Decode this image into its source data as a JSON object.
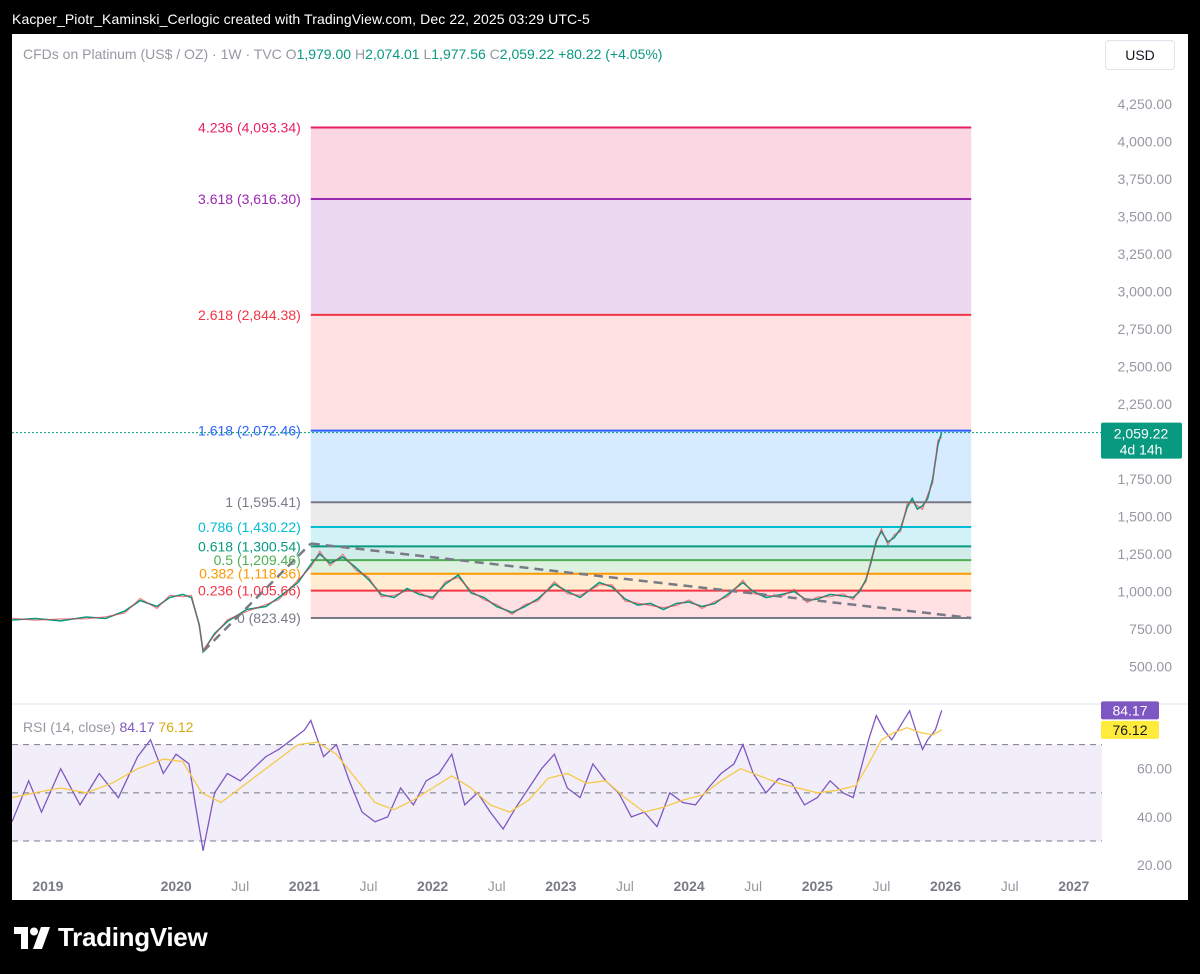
{
  "header": {
    "attribution": "Kacper_Piotr_Kaminski_Cerlogic created with TradingView.com, Dec 22, 2025 03:29 UTC-5"
  },
  "legend": {
    "symbol": "CFDs on Platinum (US$ / OZ) · 1W · TVC",
    "open_label": "O",
    "open": "1,979.00",
    "high_label": "H",
    "high": "2,074.01",
    "low_label": "L",
    "low": "1,977.56",
    "close_label": "C",
    "close": "2,059.22",
    "change": "+80.22 (+4.05%)"
  },
  "currency_button": "USD",
  "rsi_legend": {
    "label": "RSI (14, close)",
    "rsi_value": "84.17",
    "ma_value": "76.12"
  },
  "footer": {
    "brand": "TradingView"
  },
  "chart_data": {
    "type": "line",
    "title": "CFDs on Platinum (US$ / OZ) · 1W · TVC",
    "price_axis": {
      "ticks": [
        "4,250.00",
        "4,000.00",
        "3,750.00",
        "3,500.00",
        "3,250.00",
        "3,000.00",
        "2,750.00",
        "2,500.00",
        "2,250.00",
        "1,750.00",
        "1,500.00",
        "1,250.00",
        "1,000.00",
        "750.00",
        "500.00"
      ],
      "ylim": [
        250,
        4450
      ]
    },
    "time_axis": {
      "ticks": [
        {
          "label": "2019",
          "t": 2019.0,
          "bold": true
        },
        {
          "label": "2020",
          "t": 2020.0,
          "bold": true
        },
        {
          "label": "Jul",
          "t": 2020.5,
          "bold": false
        },
        {
          "label": "2021",
          "t": 2021.0,
          "bold": true
        },
        {
          "label": "Jul",
          "t": 2021.5,
          "bold": false
        },
        {
          "label": "2022",
          "t": 2022.0,
          "bold": true
        },
        {
          "label": "Jul",
          "t": 2022.5,
          "bold": false
        },
        {
          "label": "2023",
          "t": 2023.0,
          "bold": true
        },
        {
          "label": "Jul",
          "t": 2023.5,
          "bold": false
        },
        {
          "label": "2024",
          "t": 2024.0,
          "bold": true
        },
        {
          "label": "Jul",
          "t": 2024.5,
          "bold": false
        },
        {
          "label": "2025",
          "t": 2025.0,
          "bold": true
        },
        {
          "label": "Jul",
          "t": 2025.5,
          "bold": false
        },
        {
          "label": "2026",
          "t": 2026.0,
          "bold": true
        },
        {
          "label": "Jul",
          "t": 2026.5,
          "bold": false
        },
        {
          "label": "2027",
          "t": 2027.0,
          "bold": true
        }
      ],
      "xlim": [
        2018.72,
        2027.22
      ]
    },
    "price_series": {
      "name": "CFDs on Platinum",
      "points": [
        [
          2018.72,
          810
        ],
        [
          2018.9,
          820
        ],
        [
          2019.1,
          805
        ],
        [
          2019.3,
          830
        ],
        [
          2019.45,
          820
        ],
        [
          2019.6,
          870
        ],
        [
          2019.72,
          940
        ],
        [
          2019.85,
          900
        ],
        [
          2019.95,
          960
        ],
        [
          2020.05,
          980
        ],
        [
          2020.12,
          960
        ],
        [
          2020.18,
          780
        ],
        [
          2020.21,
          600
        ],
        [
          2020.3,
          720
        ],
        [
          2020.4,
          800
        ],
        [
          2020.55,
          880
        ],
        [
          2020.7,
          900
        ],
        [
          2020.8,
          960
        ],
        [
          2020.95,
          1060
        ],
        [
          2021.05,
          1180
        ],
        [
          2021.12,
          1250
        ],
        [
          2021.2,
          1190
        ],
        [
          2021.3,
          1230
        ],
        [
          2021.4,
          1160
        ],
        [
          2021.5,
          1080
        ],
        [
          2021.6,
          980
        ],
        [
          2021.7,
          960
        ],
        [
          2021.8,
          1020
        ],
        [
          2021.9,
          980
        ],
        [
          2022.0,
          960
        ],
        [
          2022.1,
          1050
        ],
        [
          2022.2,
          1110
        ],
        [
          2022.3,
          990
        ],
        [
          2022.4,
          960
        ],
        [
          2022.5,
          900
        ],
        [
          2022.62,
          860
        ],
        [
          2022.72,
          900
        ],
        [
          2022.82,
          950
        ],
        [
          2022.95,
          1050
        ],
        [
          2023.05,
          1000
        ],
        [
          2023.15,
          960
        ],
        [
          2023.3,
          1060
        ],
        [
          2023.4,
          1030
        ],
        [
          2023.5,
          950
        ],
        [
          2023.6,
          910
        ],
        [
          2023.7,
          920
        ],
        [
          2023.8,
          880
        ],
        [
          2023.9,
          920
        ],
        [
          2024.0,
          930
        ],
        [
          2024.1,
          900
        ],
        [
          2024.2,
          920
        ],
        [
          2024.3,
          980
        ],
        [
          2024.42,
          1060
        ],
        [
          2024.5,
          1000
        ],
        [
          2024.6,
          960
        ],
        [
          2024.72,
          980
        ],
        [
          2024.82,
          1000
        ],
        [
          2024.92,
          940
        ],
        [
          2025.0,
          950
        ],
        [
          2025.1,
          980
        ],
        [
          2025.2,
          970
        ],
        [
          2025.28,
          960
        ],
        [
          2025.33,
          1000
        ],
        [
          2025.38,
          1080
        ],
        [
          2025.42,
          1200
        ],
        [
          2025.46,
          1340
        ],
        [
          2025.5,
          1400
        ],
        [
          2025.55,
          1330
        ],
        [
          2025.6,
          1360
        ],
        [
          2025.65,
          1420
        ],
        [
          2025.7,
          1560
        ],
        [
          2025.74,
          1620
        ],
        [
          2025.78,
          1550
        ],
        [
          2025.82,
          1570
        ],
        [
          2025.86,
          1620
        ],
        [
          2025.9,
          1750
        ],
        [
          2025.94,
          1980
        ],
        [
          2025.97,
          2059.22
        ]
      ]
    },
    "trendline": {
      "from": [
        2020.21,
        600
      ],
      "to": [
        2021.05,
        1320
      ],
      "dash": "dashed"
    },
    "trendline2": {
      "from": [
        2021.05,
        1320
      ],
      "to": [
        2026.2,
        823.49
      ],
      "dash": "dashed"
    },
    "fib_levels": [
      {
        "ratio": "4.236",
        "price": 4093.34,
        "label": "4.236 (4,093.34)",
        "color": "#e91e63",
        "fill": "#f8bbd0"
      },
      {
        "ratio": "3.618",
        "price": 3616.3,
        "label": "3.618 (3,616.30)",
        "color": "#9c27b0",
        "fill": "#e1bee7"
      },
      {
        "ratio": "2.618",
        "price": 2844.38,
        "label": "2.618 (2,844.38)",
        "color": "#f23645",
        "fill": "#ffcdd2"
      },
      {
        "ratio": "1.618",
        "price": 2072.46,
        "label": "1.618 (2,072.46)",
        "color": "#2962ff",
        "fill": "#bbdefb"
      },
      {
        "ratio": "1",
        "price": 1595.41,
        "label": "1 (1,595.41)",
        "color": "#787b86",
        "fill": "#dedede"
      },
      {
        "ratio": "0.786",
        "price": 1430.22,
        "label": "0.786 (1,430.22)",
        "color": "#00bcd4",
        "fill": "#b2ebf2"
      },
      {
        "ratio": "0.618",
        "price": 1300.54,
        "label": "0.618 (1,300.54)",
        "color": "#089981",
        "fill": "#b2dfdb"
      },
      {
        "ratio": "0.5",
        "price": 1209.46,
        "label": "0.5 (1,209.46)",
        "color": "#4caf50",
        "fill": "#c8e6c9"
      },
      {
        "ratio": "0.382",
        "price": 1118.36,
        "label": "0.382 (1,118.36)",
        "color": "#ff9800",
        "fill": "#ffe0b2"
      },
      {
        "ratio": "0.236",
        "price": 1005.66,
        "label": "0.236 (1,005.66)",
        "color": "#f23645",
        "fill": "#ffcdd2"
      },
      {
        "ratio": "0",
        "price": 823.49,
        "label": "0 (823.49)",
        "color": "#787b86",
        "fill": "#eeeeee"
      }
    ],
    "fib_range": {
      "t_start": 2021.05,
      "t_end": 2026.2
    },
    "last_price": {
      "value": "2,059.22",
      "countdown": "4d 14h",
      "price": 2059.22
    },
    "rsi": {
      "name": "RSI (14, close)",
      "ticks": [
        "60.00",
        "40.00",
        "20.00"
      ],
      "bands": {
        "upper": 70,
        "middle": 50,
        "lower": 30
      },
      "ylim": [
        18,
        86
      ],
      "last_rsi": "84.17",
      "last_ma": "76.12",
      "rsi_points": [
        [
          2018.72,
          38
        ],
        [
          2018.85,
          55
        ],
        [
          2018.95,
          42
        ],
        [
          2019.1,
          60
        ],
        [
          2019.25,
          45
        ],
        [
          2019.4,
          58
        ],
        [
          2019.55,
          48
        ],
        [
          2019.7,
          65
        ],
        [
          2019.8,
          72
        ],
        [
          2019.9,
          58
        ],
        [
          2020.0,
          66
        ],
        [
          2020.1,
          62
        ],
        [
          2020.15,
          45
        ],
        [
          2020.21,
          26
        ],
        [
          2020.3,
          50
        ],
        [
          2020.4,
          58
        ],
        [
          2020.5,
          55
        ],
        [
          2020.6,
          60
        ],
        [
          2020.7,
          65
        ],
        [
          2020.8,
          68
        ],
        [
          2020.9,
          72
        ],
        [
          2021.0,
          76
        ],
        [
          2021.05,
          80
        ],
        [
          2021.15,
          65
        ],
        [
          2021.25,
          70
        ],
        [
          2021.35,
          55
        ],
        [
          2021.45,
          42
        ],
        [
          2021.55,
          38
        ],
        [
          2021.65,
          40
        ],
        [
          2021.75,
          52
        ],
        [
          2021.85,
          45
        ],
        [
          2021.95,
          55
        ],
        [
          2022.05,
          58
        ],
        [
          2022.15,
          66
        ],
        [
          2022.25,
          45
        ],
        [
          2022.35,
          50
        ],
        [
          2022.45,
          42
        ],
        [
          2022.55,
          35
        ],
        [
          2022.65,
          44
        ],
        [
          2022.75,
          52
        ],
        [
          2022.85,
          60
        ],
        [
          2022.95,
          66
        ],
        [
          2023.05,
          52
        ],
        [
          2023.15,
          48
        ],
        [
          2023.25,
          62
        ],
        [
          2023.35,
          55
        ],
        [
          2023.45,
          50
        ],
        [
          2023.55,
          40
        ],
        [
          2023.65,
          42
        ],
        [
          2023.75,
          36
        ],
        [
          2023.85,
          50
        ],
        [
          2023.95,
          46
        ],
        [
          2024.05,
          45
        ],
        [
          2024.15,
          52
        ],
        [
          2024.25,
          58
        ],
        [
          2024.35,
          62
        ],
        [
          2024.42,
          70
        ],
        [
          2024.5,
          58
        ],
        [
          2024.6,
          50
        ],
        [
          2024.7,
          56
        ],
        [
          2024.8,
          54
        ],
        [
          2024.9,
          45
        ],
        [
          2025.0,
          48
        ],
        [
          2025.1,
          55
        ],
        [
          2025.2,
          50
        ],
        [
          2025.28,
          48
        ],
        [
          2025.35,
          62
        ],
        [
          2025.4,
          72
        ],
        [
          2025.46,
          82
        ],
        [
          2025.52,
          76
        ],
        [
          2025.58,
          72
        ],
        [
          2025.65,
          78
        ],
        [
          2025.72,
          84
        ],
        [
          2025.78,
          74
        ],
        [
          2025.82,
          68
        ],
        [
          2025.86,
          72
        ],
        [
          2025.92,
          76
        ],
        [
          2025.97,
          84.17
        ]
      ],
      "ma_points": [
        [
          2018.72,
          48
        ],
        [
          2018.9,
          50
        ],
        [
          2019.1,
          52
        ],
        [
          2019.3,
          50
        ],
        [
          2019.5,
          54
        ],
        [
          2019.7,
          60
        ],
        [
          2019.9,
          64
        ],
        [
          2020.05,
          63
        ],
        [
          2020.2,
          50
        ],
        [
          2020.35,
          46
        ],
        [
          2020.5,
          52
        ],
        [
          2020.65,
          58
        ],
        [
          2020.8,
          64
        ],
        [
          2020.95,
          70
        ],
        [
          2021.1,
          71
        ],
        [
          2021.25,
          66
        ],
        [
          2021.4,
          56
        ],
        [
          2021.55,
          46
        ],
        [
          2021.7,
          43
        ],
        [
          2021.85,
          47
        ],
        [
          2022.0,
          52
        ],
        [
          2022.15,
          57
        ],
        [
          2022.3,
          52
        ],
        [
          2022.45,
          45
        ],
        [
          2022.6,
          42
        ],
        [
          2022.75,
          47
        ],
        [
          2022.9,
          56
        ],
        [
          2023.05,
          58
        ],
        [
          2023.2,
          54
        ],
        [
          2023.35,
          55
        ],
        [
          2023.5,
          48
        ],
        [
          2023.65,
          42
        ],
        [
          2023.8,
          44
        ],
        [
          2023.95,
          47
        ],
        [
          2024.1,
          49
        ],
        [
          2024.25,
          55
        ],
        [
          2024.4,
          60
        ],
        [
          2024.55,
          57
        ],
        [
          2024.7,
          54
        ],
        [
          2024.85,
          52
        ],
        [
          2025.0,
          50
        ],
        [
          2025.15,
          51
        ],
        [
          2025.3,
          53
        ],
        [
          2025.4,
          62
        ],
        [
          2025.5,
          72
        ],
        [
          2025.6,
          75
        ],
        [
          2025.7,
          77
        ],
        [
          2025.8,
          75
        ],
        [
          2025.9,
          74
        ],
        [
          2025.97,
          76.12
        ]
      ]
    }
  }
}
